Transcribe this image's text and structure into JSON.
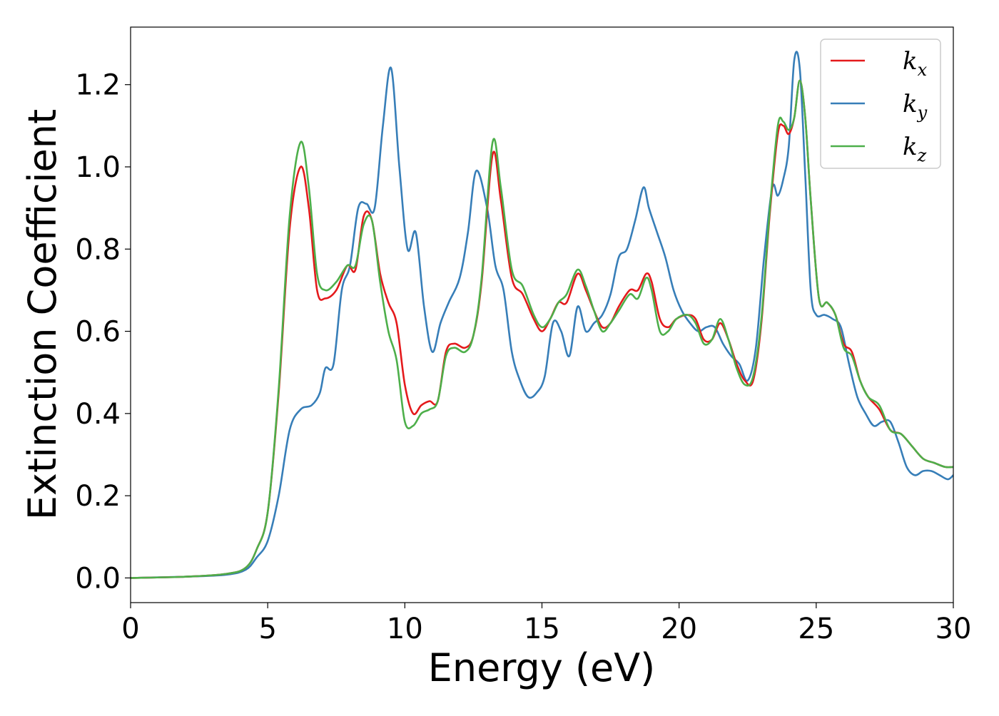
{
  "chart_data": {
    "type": "line",
    "title": "",
    "xlabel": "Energy (eV)",
    "ylabel": "Extinction Coefficient",
    "xlim": [
      0,
      30
    ],
    "ylim": [
      -0.06,
      1.34
    ],
    "xticks": [
      0,
      5,
      10,
      15,
      20,
      25,
      30
    ],
    "xtick_labels": [
      "0",
      "5",
      "10",
      "15",
      "20",
      "25",
      "30"
    ],
    "yticks": [
      0.0,
      0.2,
      0.4,
      0.6,
      0.8,
      1.0,
      1.2
    ],
    "ytick_labels": [
      "0.0",
      "0.2",
      "0.4",
      "0.6",
      "0.8",
      "1.0",
      "1.2"
    ],
    "grid": false,
    "legend_position": "top-right",
    "series": [
      {
        "name": "k",
        "subscript": "x",
        "color": "#e41a1c",
        "x": [
          0,
          2,
          3.5,
          4.2,
          4.6,
          5.0,
          5.4,
          5.8,
          6.2,
          6.5,
          6.8,
          7.1,
          7.5,
          7.9,
          8.2,
          8.5,
          8.8,
          9.1,
          9.4,
          9.7,
          10.0,
          10.3,
          10.6,
          10.9,
          11.2,
          11.5,
          11.8,
          12.2,
          12.5,
          12.8,
          13.2,
          13.5,
          13.9,
          14.3,
          14.7,
          15.0,
          15.3,
          15.6,
          15.9,
          16.3,
          16.6,
          16.9,
          17.2,
          17.5,
          17.8,
          18.2,
          18.5,
          18.8,
          19.0,
          19.3,
          19.6,
          19.9,
          20.3,
          20.6,
          20.9,
          21.2,
          21.5,
          21.8,
          22.1,
          22.4,
          22.7,
          23.0,
          23.3,
          23.6,
          23.8,
          24.0,
          24.2,
          24.4,
          24.6,
          24.8,
          25.1,
          25.4,
          25.7,
          26.0,
          26.3,
          26.6,
          26.9,
          27.3,
          27.7,
          28.1,
          28.5,
          28.9,
          29.3,
          29.7,
          30.0
        ],
        "y": [
          0.0,
          0.003,
          0.01,
          0.025,
          0.07,
          0.16,
          0.45,
          0.85,
          1.0,
          0.9,
          0.7,
          0.68,
          0.7,
          0.76,
          0.75,
          0.88,
          0.87,
          0.74,
          0.67,
          0.62,
          0.47,
          0.4,
          0.42,
          0.43,
          0.43,
          0.55,
          0.57,
          0.56,
          0.59,
          0.72,
          1.03,
          0.92,
          0.73,
          0.69,
          0.63,
          0.6,
          0.63,
          0.67,
          0.67,
          0.74,
          0.7,
          0.65,
          0.61,
          0.62,
          0.66,
          0.7,
          0.7,
          0.74,
          0.72,
          0.63,
          0.61,
          0.63,
          0.64,
          0.63,
          0.58,
          0.58,
          0.62,
          0.58,
          0.52,
          0.48,
          0.48,
          0.62,
          0.88,
          1.08,
          1.1,
          1.08,
          1.12,
          1.21,
          1.12,
          0.92,
          0.68,
          0.67,
          0.64,
          0.57,
          0.55,
          0.48,
          0.44,
          0.41,
          0.36,
          0.35,
          0.32,
          0.29,
          0.28,
          0.27,
          0.27
        ]
      },
      {
        "name": "k",
        "subscript": "y",
        "color": "#377eb8",
        "x": [
          0,
          2,
          3.5,
          4.2,
          4.6,
          5.0,
          5.4,
          5.8,
          6.2,
          6.6,
          6.9,
          7.1,
          7.4,
          7.7,
          8.0,
          8.3,
          8.6,
          8.9,
          9.2,
          9.5,
          9.8,
          10.1,
          10.4,
          10.7,
          11.0,
          11.3,
          11.6,
          12.0,
          12.3,
          12.6,
          13.0,
          13.3,
          13.6,
          13.9,
          14.2,
          14.5,
          14.8,
          15.1,
          15.4,
          15.7,
          16.0,
          16.3,
          16.6,
          16.9,
          17.2,
          17.5,
          17.8,
          18.1,
          18.4,
          18.7,
          18.9,
          19.2,
          19.5,
          19.8,
          20.1,
          20.4,
          20.7,
          21.0,
          21.3,
          21.6,
          21.9,
          22.2,
          22.5,
          22.8,
          23.1,
          23.4,
          23.6,
          23.8,
          24.0,
          24.2,
          24.4,
          24.6,
          24.8,
          25.0,
          25.3,
          25.6,
          25.9,
          26.2,
          26.5,
          26.8,
          27.1,
          27.4,
          27.7,
          28.0,
          28.3,
          28.6,
          28.9,
          29.2,
          29.5,
          29.8,
          30.0
        ],
        "y": [
          0.0,
          0.003,
          0.008,
          0.02,
          0.05,
          0.09,
          0.2,
          0.36,
          0.41,
          0.42,
          0.45,
          0.51,
          0.52,
          0.7,
          0.76,
          0.9,
          0.91,
          0.9,
          1.1,
          1.24,
          1.0,
          0.8,
          0.84,
          0.66,
          0.55,
          0.62,
          0.67,
          0.73,
          0.84,
          0.99,
          0.9,
          0.76,
          0.7,
          0.55,
          0.48,
          0.44,
          0.45,
          0.49,
          0.62,
          0.6,
          0.54,
          0.66,
          0.6,
          0.62,
          0.64,
          0.69,
          0.78,
          0.8,
          0.87,
          0.95,
          0.9,
          0.84,
          0.78,
          0.7,
          0.65,
          0.62,
          0.6,
          0.61,
          0.61,
          0.57,
          0.54,
          0.52,
          0.48,
          0.56,
          0.78,
          0.95,
          0.93,
          0.97,
          1.05,
          1.26,
          1.24,
          0.98,
          0.7,
          0.64,
          0.64,
          0.63,
          0.61,
          0.52,
          0.44,
          0.4,
          0.37,
          0.38,
          0.38,
          0.33,
          0.27,
          0.25,
          0.26,
          0.26,
          0.25,
          0.24,
          0.25
        ]
      },
      {
        "name": "k",
        "subscript": "z",
        "color": "#4daf4a",
        "x": [
          0,
          2,
          3.5,
          4.2,
          4.6,
          5.0,
          5.4,
          5.8,
          6.2,
          6.5,
          6.8,
          7.1,
          7.5,
          7.9,
          8.2,
          8.5,
          8.8,
          9.1,
          9.4,
          9.7,
          10.0,
          10.3,
          10.6,
          10.9,
          11.2,
          11.5,
          11.8,
          12.2,
          12.5,
          12.8,
          13.2,
          13.5,
          13.9,
          14.3,
          14.7,
          15.0,
          15.3,
          15.6,
          15.9,
          16.3,
          16.6,
          16.9,
          17.2,
          17.5,
          17.8,
          18.2,
          18.5,
          18.8,
          19.0,
          19.3,
          19.6,
          19.9,
          20.3,
          20.6,
          20.9,
          21.2,
          21.5,
          21.8,
          22.1,
          22.4,
          22.7,
          23.0,
          23.3,
          23.6,
          23.8,
          24.0,
          24.2,
          24.4,
          24.6,
          24.8,
          25.1,
          25.4,
          25.7,
          26.0,
          26.3,
          26.6,
          26.9,
          27.3,
          27.7,
          28.1,
          28.5,
          28.9,
          29.3,
          29.7,
          30.0
        ],
        "y": [
          0.0,
          0.003,
          0.01,
          0.025,
          0.07,
          0.16,
          0.46,
          0.88,
          1.06,
          0.95,
          0.74,
          0.7,
          0.72,
          0.76,
          0.76,
          0.86,
          0.87,
          0.72,
          0.6,
          0.53,
          0.38,
          0.37,
          0.4,
          0.41,
          0.43,
          0.54,
          0.56,
          0.55,
          0.59,
          0.73,
          1.06,
          0.95,
          0.75,
          0.71,
          0.64,
          0.61,
          0.63,
          0.67,
          0.69,
          0.75,
          0.71,
          0.65,
          0.6,
          0.62,
          0.65,
          0.69,
          0.68,
          0.73,
          0.7,
          0.6,
          0.6,
          0.63,
          0.64,
          0.62,
          0.57,
          0.58,
          0.63,
          0.58,
          0.51,
          0.47,
          0.49,
          0.63,
          0.89,
          1.1,
          1.11,
          1.09,
          1.12,
          1.21,
          1.12,
          0.92,
          0.68,
          0.67,
          0.64,
          0.56,
          0.54,
          0.48,
          0.44,
          0.42,
          0.36,
          0.35,
          0.32,
          0.29,
          0.28,
          0.27,
          0.27
        ]
      }
    ]
  }
}
